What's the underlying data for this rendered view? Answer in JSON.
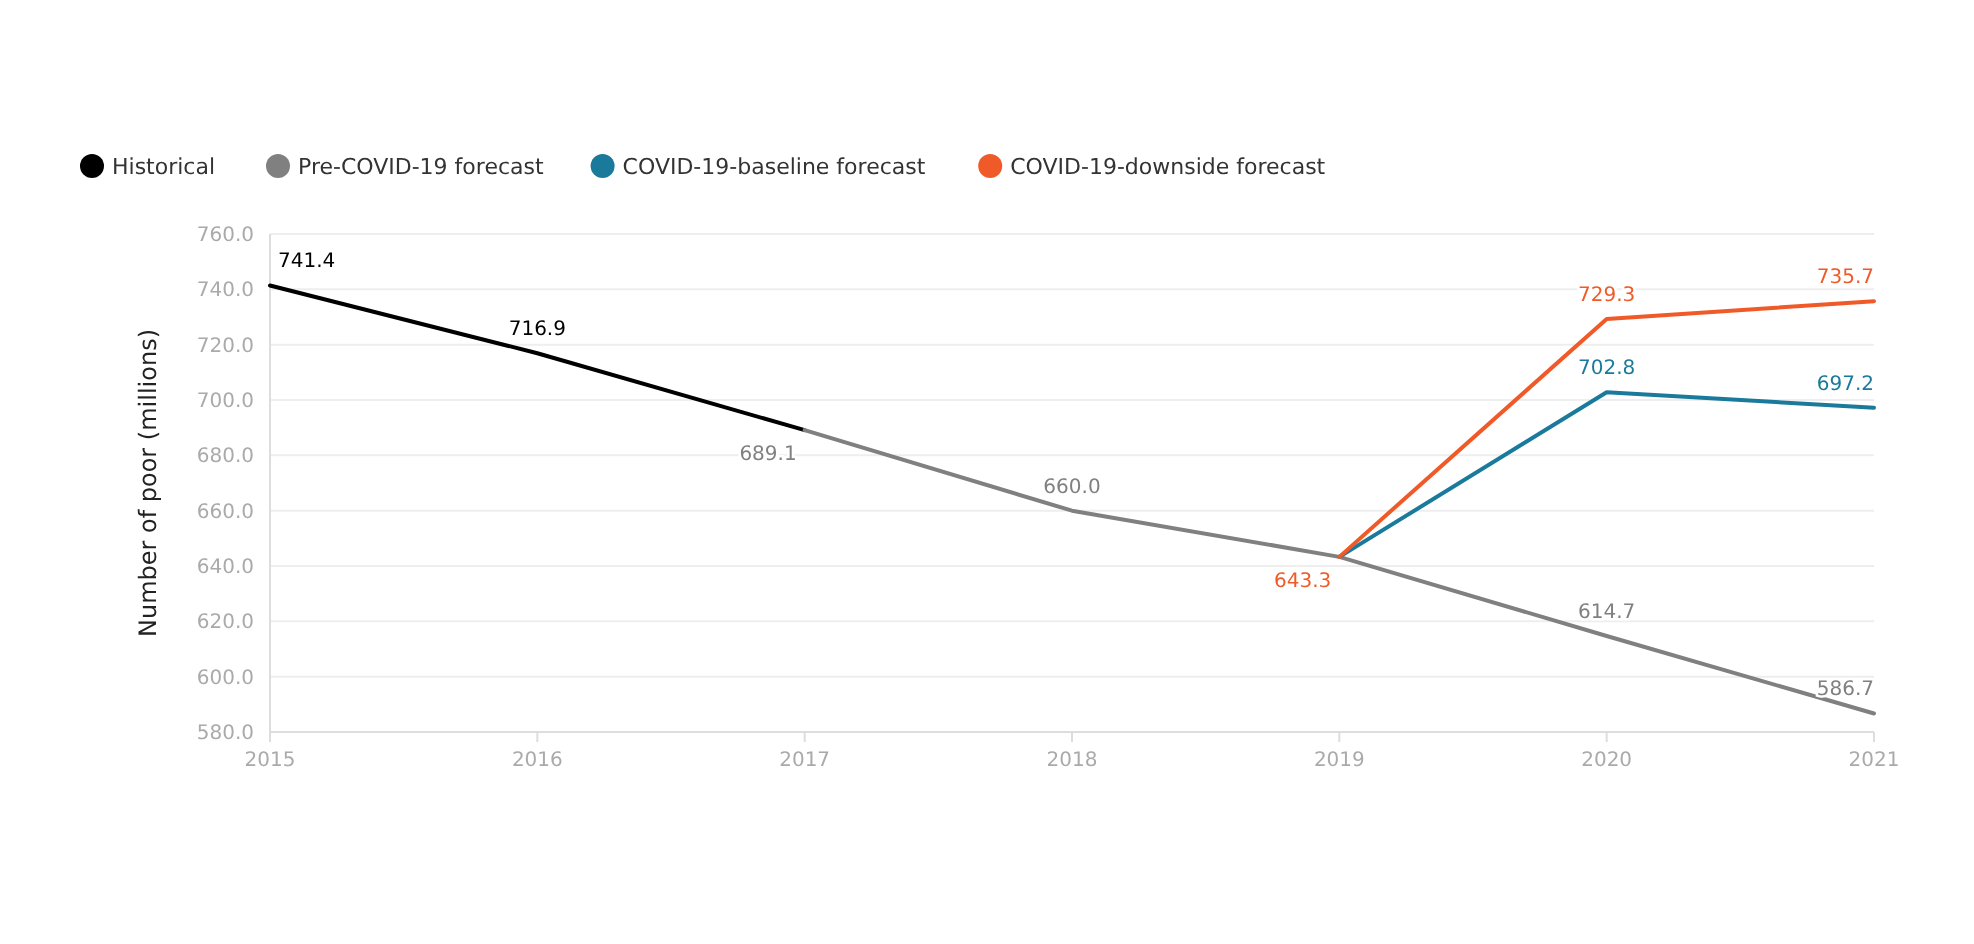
{
  "chart_data": {
    "type": "line",
    "ylabel": "Number of poor (millions)",
    "xlim": [
      2015,
      2021
    ],
    "xticks": [
      2015,
      2016,
      2017,
      2018,
      2019,
      2020,
      2021
    ],
    "ylim": [
      580,
      760
    ],
    "yticks": [
      {
        "value": 580,
        "label": "580.0"
      },
      {
        "value": 600,
        "label": "600.0"
      },
      {
        "value": 620,
        "label": "620.0"
      },
      {
        "value": 640,
        "label": "640.0"
      },
      {
        "value": 660,
        "label": "660.0"
      },
      {
        "value": 680,
        "label": "680.0"
      },
      {
        "value": 700,
        "label": "700.0"
      },
      {
        "value": 720,
        "label": "720.0"
      },
      {
        "value": 740,
        "label": "740.0"
      },
      {
        "value": 760,
        "label": "760.0"
      }
    ],
    "grid": "y",
    "legend": "top left",
    "marker": "none",
    "line_style": "solid",
    "series": [
      {
        "name": "Historical",
        "color": "#000000",
        "x": [
          2015,
          2016,
          2017
        ],
        "values": [
          741.4,
          716.9,
          689.1
        ],
        "value_labels": [
          "741.4",
          "716.9",
          null
        ]
      },
      {
        "name": "Pre-COVID-19 forecast",
        "color": "#808080",
        "x": [
          2017,
          2018,
          2019,
          2020,
          2021
        ],
        "values": [
          689.1,
          660.0,
          643.3,
          614.7,
          586.7
        ],
        "value_labels": [
          "689.1",
          "660.0",
          null,
          "614.7",
          "586.7"
        ]
      },
      {
        "name": "COVID-19-baseline forecast",
        "color": "#1a7a9c",
        "x": [
          2019,
          2020,
          2021
        ],
        "values": [
          643.3,
          702.8,
          697.2
        ],
        "value_labels": [
          null,
          "702.8",
          "697.2"
        ]
      },
      {
        "name": "COVID-19-downside forecast",
        "color": "#f05a28",
        "x": [
          2019,
          2020,
          2021
        ],
        "values": [
          643.3,
          729.3,
          735.7
        ],
        "value_labels": [
          "643.3",
          "729.3",
          "735.7"
        ]
      }
    ]
  }
}
